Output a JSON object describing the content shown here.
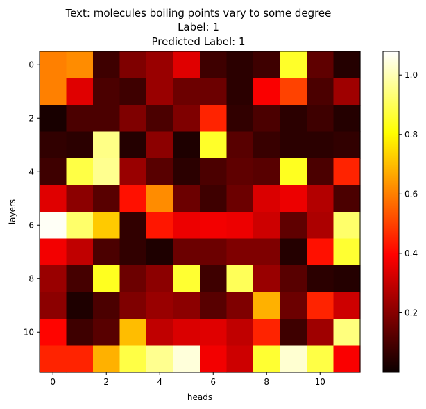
{
  "chart_data": {
    "type": "heatmap",
    "title_lines": [
      "Text: molecules boiling points vary to some degree",
      "Label: 1",
      "Predicted Label: 1"
    ],
    "xlabel": "heads",
    "ylabel": "layers",
    "xticks": [
      0,
      2,
      4,
      6,
      8,
      10
    ],
    "yticks": [
      0,
      2,
      4,
      6,
      8,
      10
    ],
    "n_rows": 12,
    "n_cols": 12,
    "colorscale": "hot",
    "vmin": 0.0,
    "vmax": 1.08,
    "colorbar_ticks": [
      0.2,
      0.4,
      0.6,
      0.8,
      1.0
    ],
    "colorbar_tick_labels": [
      "0.2",
      "0.4",
      "0.6",
      "0.8",
      "1.0"
    ],
    "values": [
      [
        0.6,
        0.62,
        0.08,
        0.18,
        0.22,
        0.33,
        0.08,
        0.05,
        0.08,
        0.85,
        0.13,
        0.04
      ],
      [
        0.6,
        0.33,
        0.1,
        0.08,
        0.22,
        0.15,
        0.15,
        0.05,
        0.37,
        0.5,
        0.1,
        0.23
      ],
      [
        0.02,
        0.1,
        0.1,
        0.18,
        0.1,
        0.18,
        0.45,
        0.06,
        0.1,
        0.05,
        0.08,
        0.04
      ],
      [
        0.06,
        0.05,
        0.95,
        0.04,
        0.2,
        0.03,
        0.85,
        0.12,
        0.07,
        0.05,
        0.05,
        0.06
      ],
      [
        0.08,
        0.88,
        0.96,
        0.22,
        0.12,
        0.05,
        0.1,
        0.13,
        0.12,
        0.84,
        0.1,
        0.45
      ],
      [
        0.33,
        0.2,
        0.12,
        0.42,
        0.62,
        0.15,
        0.08,
        0.15,
        0.32,
        0.35,
        0.26,
        0.1
      ],
      [
        1.07,
        0.92,
        0.72,
        0.06,
        0.43,
        0.35,
        0.36,
        0.35,
        0.3,
        0.13,
        0.25,
        0.92
      ],
      [
        0.36,
        0.28,
        0.1,
        0.06,
        0.03,
        0.15,
        0.15,
        0.18,
        0.18,
        0.04,
        0.42,
        0.86
      ],
      [
        0.22,
        0.09,
        0.84,
        0.15,
        0.2,
        0.86,
        0.08,
        0.9,
        0.22,
        0.12,
        0.05,
        0.04
      ],
      [
        0.2,
        0.03,
        0.1,
        0.18,
        0.22,
        0.2,
        0.12,
        0.18,
        0.68,
        0.15,
        0.45,
        0.3
      ],
      [
        0.4,
        0.08,
        0.12,
        0.7,
        0.28,
        0.32,
        0.33,
        0.28,
        0.45,
        0.08,
        0.23,
        0.94
      ],
      [
        0.45,
        0.45,
        0.68,
        0.88,
        0.96,
        1.04,
        0.36,
        0.3,
        0.86,
        1.03,
        0.88,
        0.37
      ]
    ]
  }
}
